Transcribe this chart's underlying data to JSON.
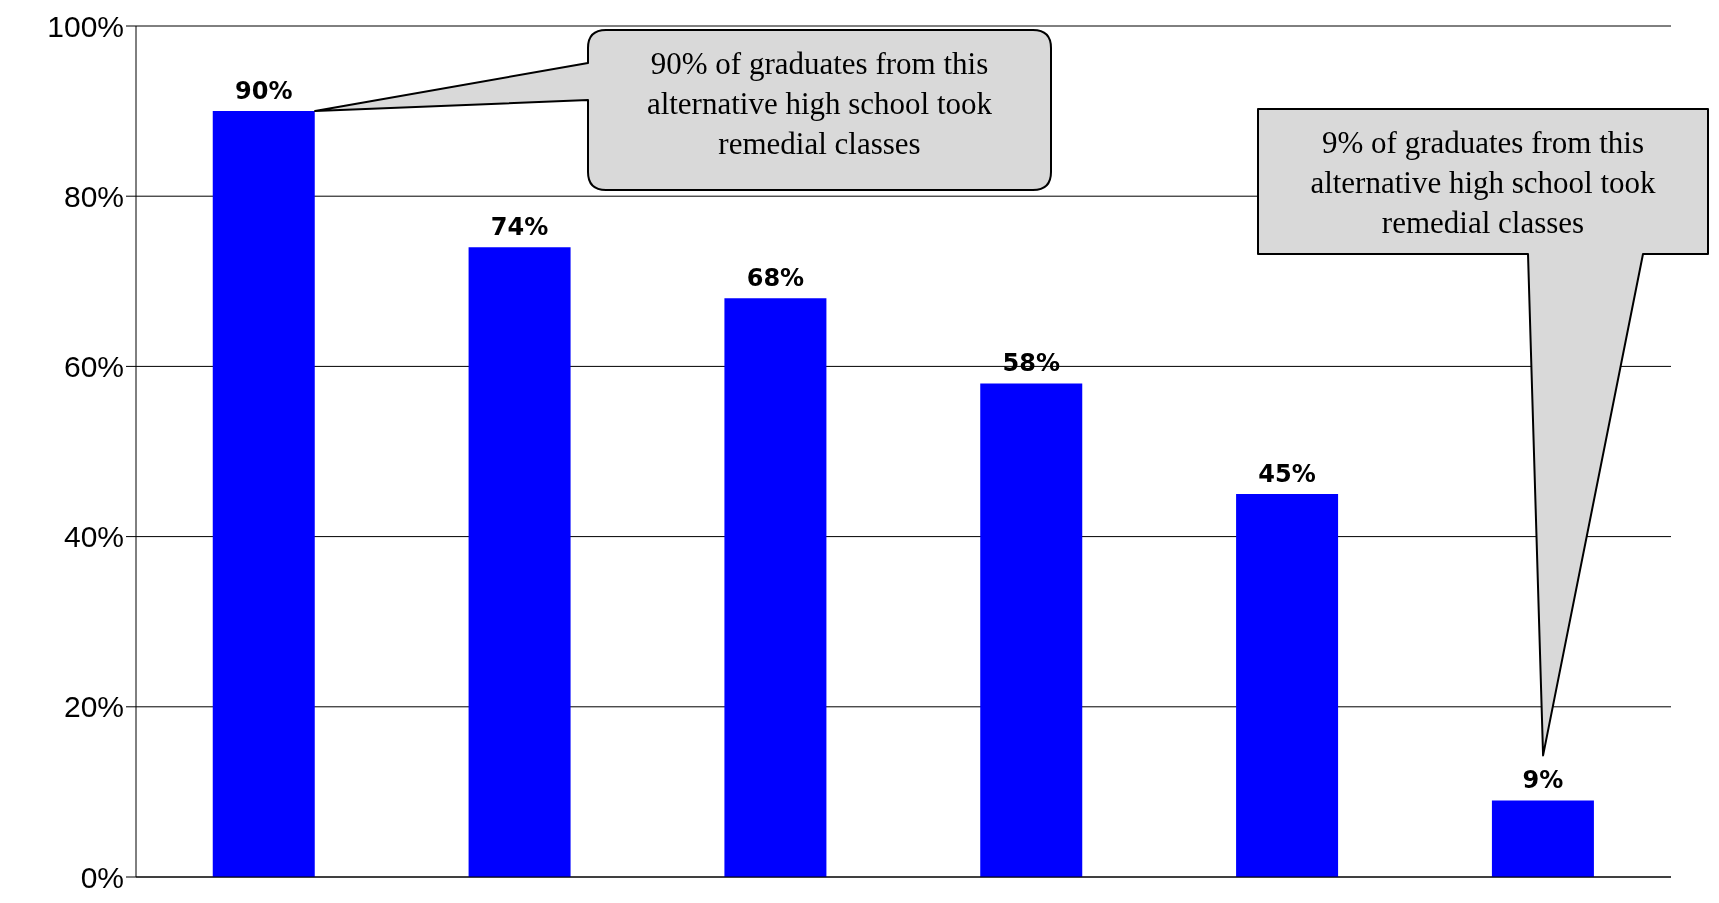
{
  "chart_data": {
    "type": "bar",
    "categories": [
      null,
      null,
      null,
      null,
      null,
      null
    ],
    "values": [
      90,
      74,
      68,
      58,
      45,
      9
    ],
    "color": "#0000ff",
    "value_labels": [
      "90%",
      "74%",
      "68%",
      "58%",
      "45%",
      "9%"
    ],
    "ylim": [
      0,
      100
    ],
    "yticks": [
      {
        "value": 0,
        "label": "0%"
      },
      {
        "value": 20,
        "label": "20%"
      },
      {
        "value": 40,
        "label": "40%"
      },
      {
        "value": 60,
        "label": "60%"
      },
      {
        "value": 80,
        "label": "80%"
      },
      {
        "value": 100,
        "label": "100%"
      }
    ],
    "grid": "y",
    "annotations": [
      "90% of graduates from this alternative high school took remedial classes",
      "9% of graduates from this alternative high school took remedial classes"
    ]
  }
}
